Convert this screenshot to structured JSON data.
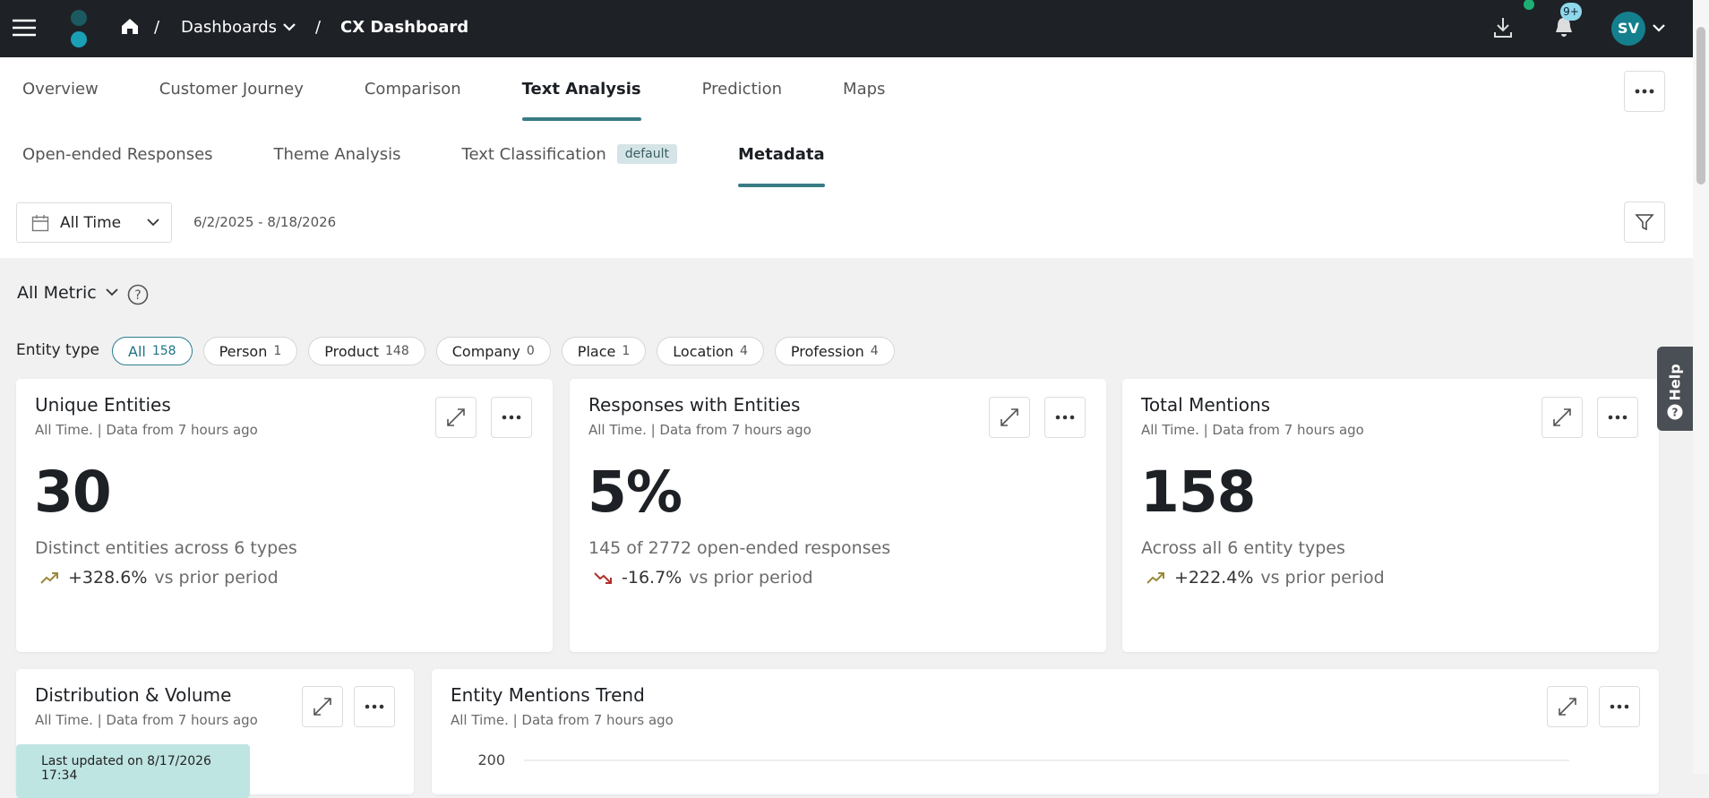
{
  "header": {
    "breadcrumb": [
      "Dashboards",
      "CX Dashboard"
    ],
    "notification_count": "9+",
    "avatar": "SV"
  },
  "tabs": {
    "items": [
      "Overview",
      "Customer Journey",
      "Comparison",
      "Text Analysis",
      "Prediction",
      "Maps"
    ],
    "active": 3
  },
  "subtabs": {
    "items": [
      {
        "label": "Open-ended Responses"
      },
      {
        "label": "Theme Analysis"
      },
      {
        "label": "Text Classification",
        "badge": "default"
      },
      {
        "label": "Metadata"
      }
    ],
    "active": 3
  },
  "filter": {
    "period": "All Time",
    "date_range": "6/2/2025 - 8/18/2026"
  },
  "metric_selector": "All Metric",
  "entity_filter": {
    "label": "Entity type",
    "active": 0,
    "chips": [
      {
        "name": "All",
        "count": 158
      },
      {
        "name": "Person",
        "count": 1
      },
      {
        "name": "Product",
        "count": 148
      },
      {
        "name": "Company",
        "count": 0
      },
      {
        "name": "Place",
        "count": 1
      },
      {
        "name": "Location",
        "count": 4
      },
      {
        "name": "Profession",
        "count": 4
      }
    ]
  },
  "cards": [
    {
      "title": "Unique Entities",
      "subtitle": "All Time. | Data from 7 hours ago",
      "value": "30",
      "description": "Distinct entities across 6 types",
      "change": "+328.6%",
      "comparison": "vs prior period",
      "trend": "up"
    },
    {
      "title": "Responses with Entities",
      "subtitle": "All Time. | Data from 7 hours ago",
      "value": "5%",
      "description": "145 of 2772 open-ended responses",
      "change": "-16.7%",
      "comparison": "vs prior period",
      "trend": "down"
    },
    {
      "title": "Total Mentions",
      "subtitle": "All Time. | Data from 7 hours ago",
      "value": "158",
      "description": "Across all 6 entity types",
      "change": "+222.4%",
      "comparison": "vs prior period",
      "trend": "up"
    }
  ],
  "panels": [
    {
      "title": "Distribution & Volume",
      "subtitle": "All Time. | Data from 7 hours ago",
      "note": "Last updated on 8/17/2026 17:34"
    },
    {
      "title": "Entity Mentions Trend",
      "subtitle": "All Time. | Data from 7 hours ago",
      "axis_tick": 200
    }
  ],
  "help": "Help"
}
